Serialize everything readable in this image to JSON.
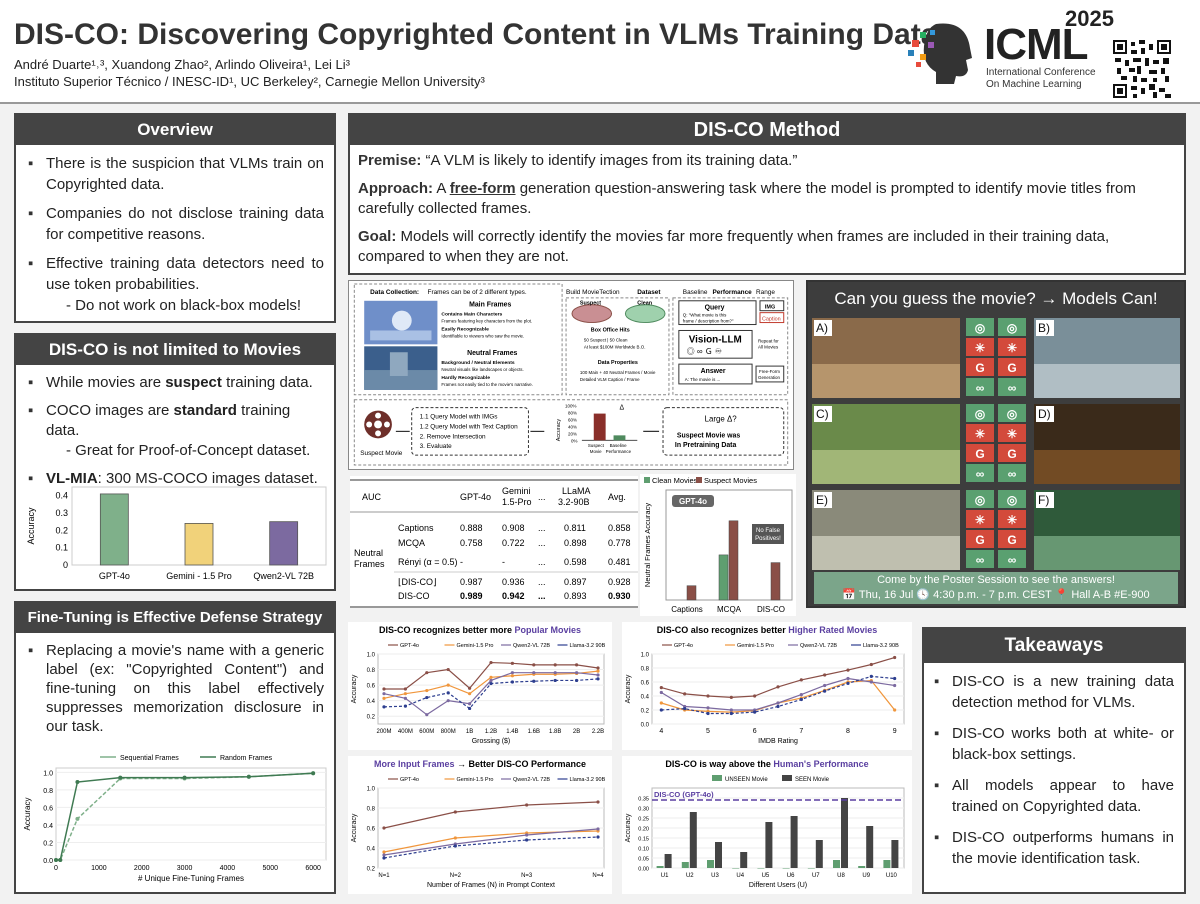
{
  "header": {
    "title": "DIS-CO: Discovering Copyrighted Content in VLMs Training Data",
    "authors": "André Duarte¹˒³, Xuandong Zhao², Arlindo Oliveira¹, Lei Li³",
    "affiliations": "Instituto Superior Técnico / INESC-ID¹, UC Berkeley², Carnegie Mellon University³",
    "conf_name": "ICML",
    "conf_year": "2025",
    "conf_sub1": "International Conference",
    "conf_sub2": "On Machine Learning"
  },
  "overview": {
    "title": "Overview",
    "items": [
      "There is the suspicion that VLMs train on Copyrighted data.",
      "Companies do not disclose training data for competitive reasons.",
      "Effective training data detectors need to use token probabilities."
    ],
    "sub": "- Do not work on black-box models!"
  },
  "not_limited": {
    "title": "DIS-CO is not limited to Movies",
    "item1_pre": "While movies are ",
    "item1_bold": "suspect",
    "item1_post": " training data.",
    "item2_pre": "COCO images are ",
    "item2_bold": "standard",
    "item2_post": " training data.",
    "item2_sub": "- Great for Proof-of-Concept dataset.",
    "item3_bold": "VL-MIA",
    "item3_post": ": 300 MS-COCO images dataset."
  },
  "finetune": {
    "title": "Fine-Tuning is Effective Defense Strategy",
    "text": "Replacing a movie's name with a generic label (ex: \"Copyrighted Content\") and fine-tuning on this label effectively suppresses memorization disclosure in our task."
  },
  "method": {
    "title": "DIS-CO Method",
    "premise_label": "Premise:",
    "premise": " “A VLM is likely to identify images from its training data.”",
    "approach_label": "Approach:",
    "approach_pre": " A ",
    "approach_link": "free-form",
    "approach_post": " generation question-answering task where the model is prompted to identify movie titles from carefully collected frames.",
    "goal_label": "Goal:",
    "goal": " Models will correctly identify the movies far more frequently when frames are included in their training data, compared to when they are not."
  },
  "pipeline": {
    "data_collection": "Data Collection:",
    "data_collection_rest": "Frames can be of 2 different types.",
    "main_frames": "Main Frames",
    "main_line1": "Contains Main Characters",
    "main_line2": "Frames featuring key characters from the plot.",
    "main_line3": "Easily Recognizable",
    "main_line4": "Identifiable to viewers who saw the movie.",
    "neutral_frames": "Neutral Frames",
    "neutral_line1": "Background / Neutral Elements",
    "neutral_line2": "Neutral visuals like landscapes or objects.",
    "neutral_line3": "Hardly Recognizable",
    "neutral_line4": "Frames not easily tied to the movie's narrative.",
    "build": "Build MovieTection",
    "build_bold": "Dataset",
    "suspect": "Suspect",
    "clean": "Clean",
    "box_office": "Box Office Hits",
    "bo1": "50 Suspect | 50 Clean",
    "bo2": "At least $100M Worldwide B.O.",
    "data_props": "Data Properties",
    "dp1": "100 Main + 40 Neutral Frames / Movie",
    "dp2": "Detailed VLM Caption / Frame",
    "baseline": "Baseline",
    "baseline_bold": "Performance",
    "baseline_end": "Range",
    "query": "Query",
    "query_q": "Q: \"What movie is this",
    "query_q2": "frame / description from?\"",
    "imgs": "IMG",
    "caption": "Caption",
    "vision_llm": "Vision-LLM",
    "repeat": "Repeat for",
    "repeat2": "All Movies",
    "answer": "Answer",
    "answer_a": "A: The movie is ...",
    "freeform": "Free-Form",
    "freeform2": "Generation",
    "suspect_movie": "Suspect Movie",
    "step1": "1.1 Query Model with IMGs",
    "step2": "1.2 Query Model with Text Caption",
    "step3": "2. Remove Intersection",
    "step4": "3. Evaluate",
    "accuracy": "Accuracy",
    "acc_ticks": [
      "100%",
      "80%",
      "60%",
      "40%",
      "20%",
      "0%"
    ],
    "bar_suspect": "Suspect",
    "bar_suspect2": "Movie",
    "bar_baseline": "Baseline",
    "bar_baseline2": "Performance",
    "delta": "Δ",
    "large_delta": "Large Δ?",
    "conclusion1": "Suspect Movie was",
    "conclusion2": "In Pretraining Data"
  },
  "auc_table": {
    "header_auc": "AUC",
    "cols": [
      "GPT-4o",
      "Gemini",
      "...",
      "LLaMA",
      "Avg."
    ],
    "cols2": [
      "",
      "1.5-Pro",
      "",
      "3.2-90B",
      ""
    ],
    "group": [
      "Neutral",
      "Frames"
    ],
    "rows": [
      {
        "name": "Captions",
        "vals": [
          "0.888",
          "0.908",
          "...",
          "0.811",
          "0.858"
        ]
      },
      {
        "name": "MCQA",
        "vals": [
          "0.758",
          "0.722",
          "...",
          "0.898",
          "0.778"
        ]
      },
      {
        "name": "Rényi (α = 0.5)",
        "vals": [
          "-",
          "-",
          "...",
          "0.598",
          "0.481"
        ]
      },
      {
        "name": "⌊DIS-CO⌋",
        "vals": [
          "0.987",
          "0.936",
          "...",
          "0.897",
          "0.928"
        ]
      },
      {
        "name": "DIS-CO",
        "vals": [
          "0.989",
          "0.942",
          "...",
          "0.893",
          "0.930"
        ]
      }
    ]
  },
  "guess": {
    "title": "Can you guess the movie? → Models Can!",
    "labels": [
      "A)",
      "B)",
      "C)",
      "D)",
      "E)",
      "F)"
    ],
    "footer1": "Come by the Poster Session to see the answers!",
    "footer2": "📅 Thu, 16 Jul 🕓 4:30 p.m. - 7 p.m. CEST 📍 Hall A-B #E-900",
    "g_letter": "G"
  },
  "takeaways": {
    "title": "Takeaways",
    "items": [
      "DIS-CO is a new training data detection method for VLMs.",
      "DIS-CO works both at white- or black-box settings.",
      "All models appear to have trained on Copyrighted data.",
      "DIS-CO outperforms humans in the movie identification task."
    ]
  },
  "colors": {
    "dark": "#444444",
    "green": "#7fb08a",
    "yellow": "#f1d27a",
    "purple": "#7c6aa0",
    "brown": "#8a4f47",
    "orange": "#f0963c",
    "navy": "#2d3e8f",
    "accent_purple": "#5a3fa0"
  },
  "chart_data": [
    {
      "id": "vlmia",
      "type": "bar",
      "ylabel": "Accuracy",
      "categories": [
        "GPT-4o",
        "Gemini - 1.5 Pro",
        "Qwen2-VL 72B"
      ],
      "values": [
        0.41,
        0.24,
        0.25
      ],
      "ylim": [
        0,
        0.45
      ],
      "yticks": [
        "0",
        "0.1",
        "0.2",
        "0.3",
        "0.4"
      ]
    },
    {
      "id": "finetune",
      "type": "line",
      "xlabel": "# Unique Fine-Tuning Frames",
      "ylabel": "Accuracy",
      "series": [
        {
          "name": "Sequential Frames",
          "x": [
            0,
            100,
            500,
            1500,
            3000,
            4500,
            6000
          ],
          "values": [
            0.0,
            0.0,
            0.47,
            0.93,
            0.93,
            0.95,
            0.99
          ]
        },
        {
          "name": "Random Frames",
          "x": [
            0,
            100,
            500,
            1500,
            3000,
            4500,
            6000
          ],
          "values": [
            0.0,
            0.0,
            0.89,
            0.94,
            0.94,
            0.95,
            0.99
          ]
        }
      ],
      "xlim": [
        0,
        6300
      ],
      "ylim": [
        0,
        1.05
      ],
      "xticks": [
        "0",
        "1000",
        "2000",
        "3000",
        "4000",
        "5000",
        "6000"
      ],
      "yticks": [
        "0.0",
        "0.2",
        "0.4",
        "0.6",
        "0.8",
        "1.0"
      ]
    },
    {
      "id": "auc_bars",
      "type": "bar",
      "ylabel": "Neutral Frames Accuracy",
      "categories": [
        "Captions",
        "MCQA",
        "DIS-CO"
      ],
      "series": [
        {
          "name": "Clean Movies",
          "values": [
            0.0,
            0.41,
            0.0
          ]
        },
        {
          "name": "Suspect Movies",
          "values": [
            0.13,
            0.72,
            0.34
          ]
        }
      ],
      "annotation": "GPT-4o",
      "note": [
        "No False",
        "Positives!"
      ]
    },
    {
      "id": "popular",
      "type": "line",
      "title_pre": "DIS-CO recognizes better more ",
      "title_hl": "Popular Movies",
      "xlabel": "Grossing ($)",
      "ylabel": "Accuracy",
      "categories": [
        "200M",
        "400M",
        "600M",
        "800M",
        "1B",
        "1.2B",
        "1.4B",
        "1.6B",
        "1.8B",
        "2B",
        "2.2B"
      ],
      "series": [
        {
          "name": "GPT-4o",
          "values": [
            0.55,
            0.55,
            0.76,
            0.8,
            0.56,
            0.89,
            0.88,
            0.86,
            0.86,
            0.86,
            0.82
          ]
        },
        {
          "name": "Gemini-1.5 Pro",
          "values": [
            0.43,
            0.49,
            0.53,
            0.6,
            0.49,
            0.7,
            0.72,
            0.74,
            0.74,
            0.75,
            0.78
          ]
        },
        {
          "name": "Qwen2-VL 72B",
          "values": [
            0.49,
            0.43,
            0.22,
            0.4,
            0.36,
            0.66,
            0.76,
            0.76,
            0.76,
            0.76,
            0.73
          ]
        },
        {
          "name": "Llama-3.2 90B",
          "values": [
            0.32,
            0.33,
            0.44,
            0.5,
            0.3,
            0.62,
            0.64,
            0.65,
            0.66,
            0.66,
            0.68
          ]
        }
      ],
      "ylim": [
        0.1,
        1.0
      ],
      "yticks": [
        "0.2",
        "0.4",
        "0.6",
        "0.8",
        "1.0"
      ]
    },
    {
      "id": "rated",
      "type": "line",
      "title_pre": "DIS-CO also recognizes better ",
      "title_hl": "Higher Rated Movies",
      "xlabel": "IMDB Rating",
      "ylabel": "Accuracy",
      "x": [
        4,
        4.5,
        5,
        5.5,
        6,
        6.5,
        7,
        7.5,
        8,
        8.5,
        9
      ],
      "series": [
        {
          "name": "GPT-4o",
          "values": [
            0.52,
            0.43,
            0.4,
            0.38,
            0.4,
            0.53,
            0.63,
            0.7,
            0.77,
            0.85,
            0.95
          ]
        },
        {
          "name": "Gemini-1.5 Pro",
          "values": [
            0.3,
            0.2,
            0.18,
            0.17,
            0.19,
            0.3,
            0.37,
            0.48,
            0.6,
            0.62,
            0.2
          ]
        },
        {
          "name": "Qwen2-VL 72B",
          "values": [
            0.45,
            0.25,
            0.23,
            0.2,
            0.2,
            0.3,
            0.42,
            0.55,
            0.65,
            0.6,
            0.55
          ]
        },
        {
          "name": "Llama-3.2 90B",
          "values": [
            0.2,
            0.22,
            0.15,
            0.15,
            0.17,
            0.25,
            0.35,
            0.47,
            0.58,
            0.68,
            0.65
          ]
        }
      ],
      "xlim": [
        3.8,
        9.2
      ],
      "ylim": [
        0.0,
        1.0
      ],
      "xticks": [
        "4",
        "5",
        "6",
        "7",
        "8",
        "9"
      ],
      "yticks": [
        "0.0",
        "0.2",
        "0.4",
        "0.6",
        "0.8",
        "1.0"
      ]
    },
    {
      "id": "frames",
      "type": "line",
      "title_pre": "More Input Frames",
      "title_hl2": " → Better DIS-CO Performance",
      "xlabel": "Number of Frames (N) in Prompt Context",
      "ylabel": "Accuracy",
      "categories": [
        "N=1",
        "N=2",
        "N=3",
        "N=4"
      ],
      "series": [
        {
          "name": "GPT-4o",
          "values": [
            0.6,
            0.76,
            0.83,
            0.86
          ]
        },
        {
          "name": "Gemini-1.5 Pro",
          "values": [
            0.36,
            0.5,
            0.55,
            0.57
          ]
        },
        {
          "name": "Qwen2-VL 72B",
          "values": [
            0.33,
            0.44,
            0.53,
            0.59
          ]
        },
        {
          "name": "Llama-3.2 90B",
          "values": [
            0.3,
            0.42,
            0.48,
            0.51
          ]
        }
      ],
      "ylim": [
        0.2,
        1.0
      ],
      "yticks": [
        "0.2",
        "0.4",
        "0.6",
        "0.8",
        "1.0"
      ]
    },
    {
      "id": "humans",
      "type": "bar",
      "title_pre": "DIS-CO is way above the ",
      "title_hl": "Human's Performance",
      "xlabel": "Different Users (U)",
      "ylabel": "Accuracy",
      "categories": [
        "U1",
        "U2",
        "U3",
        "U4",
        "U5",
        "U6",
        "U7",
        "U8",
        "U9",
        "U10"
      ],
      "series": [
        {
          "name": "UNSEEN Movie",
          "values": [
            0.01,
            0.03,
            0.04,
            0.0,
            0.0,
            0.0,
            0.0,
            0.04,
            0.01,
            0.04
          ]
        },
        {
          "name": "SEEN Movie",
          "values": [
            0.07,
            0.28,
            0.13,
            0.08,
            0.23,
            0.26,
            0.14,
            0.35,
            0.21,
            0.14
          ]
        }
      ],
      "reference": {
        "label": "DIS-CO (GPT-4o)",
        "value": 0.34
      },
      "ylim": [
        0,
        0.4
      ],
      "yticks": [
        "0.00",
        "0.05",
        "0.10",
        "0.15",
        "0.20",
        "0.25",
        "0.30",
        "0.35"
      ]
    }
  ]
}
